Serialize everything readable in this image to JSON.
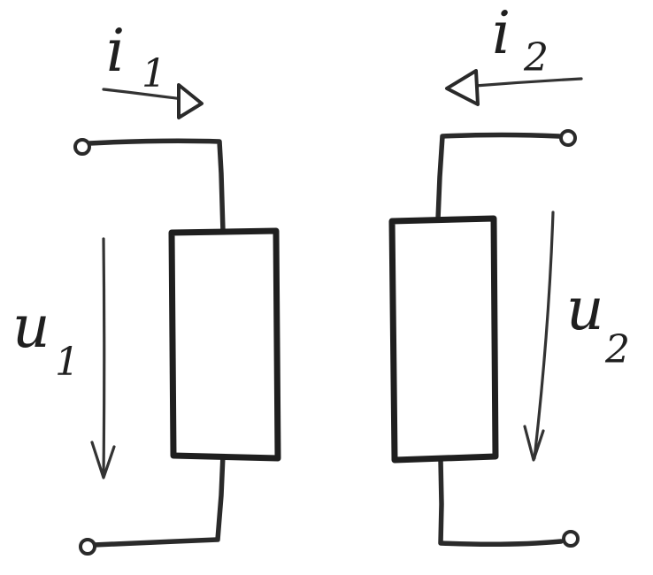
{
  "diagram": {
    "type": "two-port circuit sketch",
    "ports": [
      {
        "current": {
          "symbol": "i",
          "index": "1"
        },
        "voltage": {
          "symbol": "u",
          "index": "1"
        }
      },
      {
        "current": {
          "symbol": "i",
          "index": "2"
        },
        "voltage": {
          "symbol": "u",
          "index": "2"
        }
      }
    ],
    "colors": {
      "ink": "#1f1f1f",
      "background": "#ffffff"
    }
  }
}
